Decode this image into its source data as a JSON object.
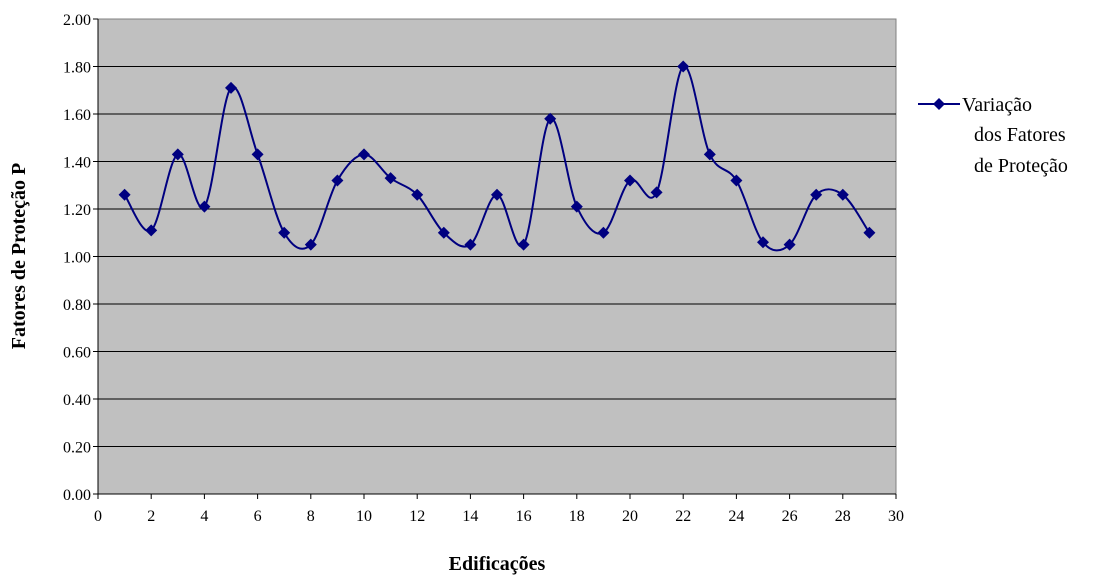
{
  "chart_data": {
    "type": "line",
    "title": "",
    "xlabel": "Edificações",
    "ylabel": "Fatores de Proteção P",
    "xlim": [
      0,
      30
    ],
    "ylim": [
      0,
      2
    ],
    "x_ticks": [
      "0",
      "2",
      "4",
      "6",
      "8",
      "10",
      "12",
      "14",
      "16",
      "18",
      "20",
      "22",
      "24",
      "26",
      "28",
      "30"
    ],
    "y_ticks": [
      "0.00",
      "0.20",
      "0.40",
      "0.60",
      "0.80",
      "1.00",
      "1.20",
      "1.40",
      "1.60",
      "1.80",
      "2.00"
    ],
    "grid": "horizontal",
    "smooth": true,
    "legend_position": "right",
    "series": [
      {
        "name": "Variação dos Fatores de Proteção",
        "legend_lines": [
          "Variação",
          "dos Fatores",
          "de Proteção"
        ],
        "marker": "diamond",
        "x": [
          1,
          2,
          3,
          4,
          5,
          6,
          7,
          8,
          9,
          10,
          11,
          12,
          13,
          14,
          15,
          16,
          17,
          18,
          19,
          20,
          21,
          22,
          23,
          24,
          25,
          26,
          27,
          28,
          29
        ],
        "values": [
          1.26,
          1.11,
          1.43,
          1.21,
          1.71,
          1.43,
          1.1,
          1.05,
          1.32,
          1.43,
          1.33,
          1.26,
          1.1,
          1.05,
          1.26,
          1.05,
          1.58,
          1.21,
          1.1,
          1.32,
          1.27,
          1.8,
          1.43,
          1.32,
          1.06,
          1.05,
          1.26,
          1.26,
          1.1
        ]
      }
    ],
    "colors": {
      "plot_background": "#c0c0c0",
      "series": "#000080",
      "grid": "#000000"
    }
  }
}
